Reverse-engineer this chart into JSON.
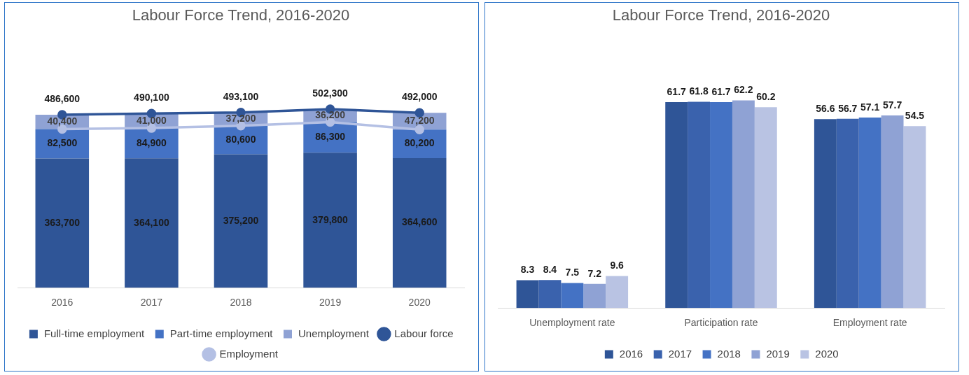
{
  "chart_data": [
    {
      "type": "bar",
      "title": "Labour Force Trend, 2016-2020",
      "categories": [
        "2016",
        "2017",
        "2018",
        "2019",
        "2020"
      ],
      "stacked": true,
      "marker": "circle",
      "legend": "bottom",
      "grid": false,
      "tick_labels": "x",
      "series": [
        {
          "name": "Full-time employment",
          "color": "#2f5597",
          "values": [
            363700,
            364100,
            375200,
            379800,
            364600
          ],
          "value_labels": [
            "363,700",
            "364,100",
            "375,200",
            "379,800",
            "364,600"
          ]
        },
        {
          "name": "Part-time employment",
          "color": "#4472c4",
          "values": [
            82500,
            84900,
            80600,
            86300,
            80200
          ],
          "value_labels": [
            "82,500",
            "84,900",
            "80,600",
            "86,300",
            "80,200"
          ]
        },
        {
          "name": "Unemployment",
          "color": "#8fa2d4",
          "values": [
            40400,
            41000,
            37200,
            36200,
            47200
          ],
          "value_labels": [
            "40,400",
            "41,000",
            "37,200",
            "36,200",
            "47,200"
          ]
        },
        {
          "name": "Labour force",
          "type": "line",
          "color": "#2f5597",
          "values": [
            486600,
            490100,
            493100,
            502300,
            492000
          ],
          "value_labels": [
            "486,600",
            "490,100",
            "493,100",
            "502,300",
            "492,000"
          ]
        },
        {
          "name": "Employment",
          "type": "line",
          "color": "#b4c0e4",
          "values": [
            446200,
            449000,
            455800,
            466100,
            444800
          ]
        }
      ]
    },
    {
      "type": "bar",
      "title": "Labour Force Trend, 2016-2020",
      "categories": [
        "Unemployment rate",
        "Participation rate",
        "Employment rate"
      ],
      "data_labels": true,
      "legend": "bottom",
      "grid": false,
      "tick_labels": "x",
      "series": [
        {
          "name": "2016",
          "color": "#2f5597",
          "values": [
            8.3,
            61.7,
            56.6
          ]
        },
        {
          "name": "2017",
          "color": "#3a62ad",
          "values": [
            8.4,
            61.8,
            56.7
          ]
        },
        {
          "name": "2018",
          "color": "#4472c4",
          "values": [
            7.5,
            61.7,
            57.1
          ]
        },
        {
          "name": "2019",
          "color": "#8fa2d4",
          "values": [
            7.2,
            62.2,
            57.7
          ]
        },
        {
          "name": "2020",
          "color": "#b9c3e3",
          "values": [
            9.6,
            60.2,
            54.5
          ]
        }
      ]
    }
  ]
}
